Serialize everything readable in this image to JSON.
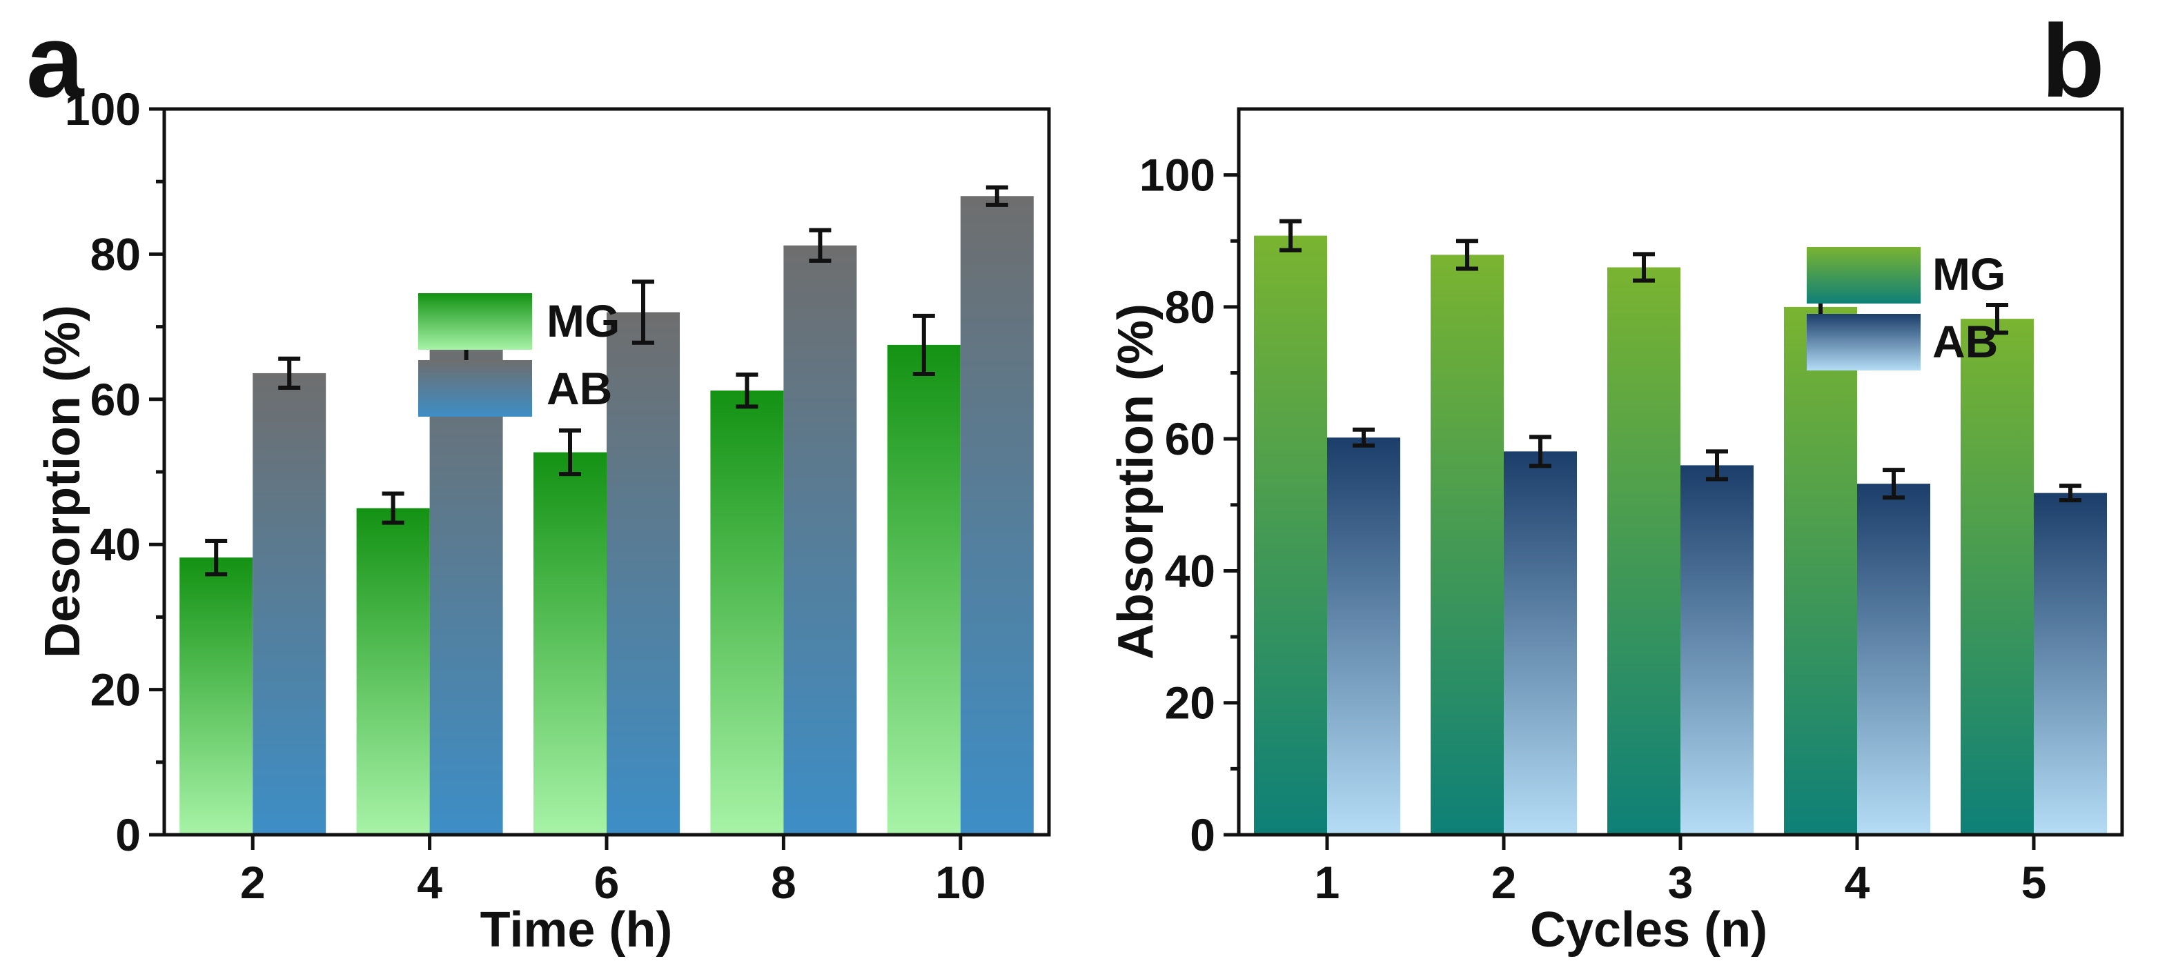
{
  "chart_data": [
    {
      "panel": "a",
      "type": "bar",
      "title": "",
      "xlabel": "Time (h)",
      "ylabel": "Desorption (%)",
      "categories": [
        "2",
        "4",
        "6",
        "8",
        "10"
      ],
      "ylim": [
        0,
        100
      ],
      "yticks": [
        "0",
        "20",
        "40",
        "60",
        "80",
        "100"
      ],
      "legend_position": "top-left",
      "series": [
        {
          "name": "MG",
          "values": [
            38.2,
            45.0,
            52.7,
            61.2,
            67.5
          ],
          "errors": [
            2.3,
            2.0,
            3.0,
            2.2,
            4.0
          ],
          "gradient_top": "#139213",
          "gradient_bottom": "#a7f3a7"
        },
        {
          "name": "AB",
          "values": [
            63.6,
            68.2,
            72.0,
            81.2,
            88.0
          ],
          "errors": [
            2.0,
            3.9,
            4.2,
            2.1,
            1.2
          ],
          "gradient_top": "#6e6e6e",
          "gradient_bottom": "#3d8ec6"
        }
      ]
    },
    {
      "panel": "b",
      "type": "bar",
      "title": "",
      "xlabel": "Cycles (n)",
      "ylabel": "Absorption (%)",
      "categories": [
        "1",
        "2",
        "3",
        "4",
        "5"
      ],
      "ylim": [
        0,
        110
      ],
      "yticks": [
        "0",
        "20",
        "40",
        "60",
        "80",
        "100"
      ],
      "legend_position": "top-right",
      "series": [
        {
          "name": "MG",
          "values": [
            90.8,
            87.9,
            86.0,
            80.0,
            78.2
          ],
          "errors": [
            2.2,
            2.1,
            2.0,
            2.0,
            2.1
          ],
          "gradient_top": "#7ab430",
          "gradient_bottom": "#0e8078"
        },
        {
          "name": "AB",
          "values": [
            60.2,
            58.1,
            56.0,
            53.2,
            51.8
          ],
          "errors": [
            1.2,
            2.2,
            2.1,
            2.1,
            1.1
          ],
          "gradient_top": "#1b3e6a",
          "gradient_bottom": "#b5ddf6"
        }
      ]
    }
  ]
}
